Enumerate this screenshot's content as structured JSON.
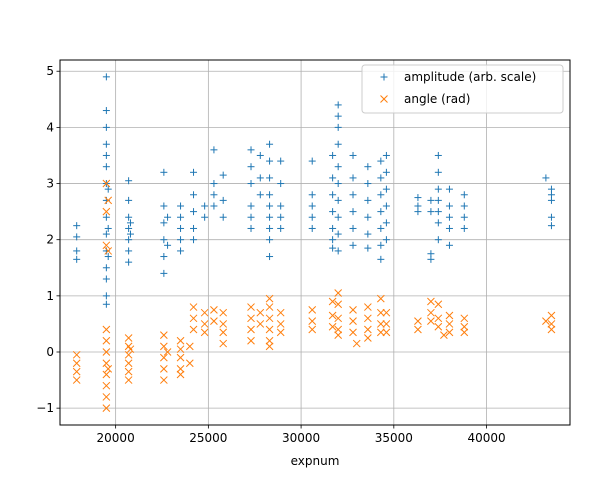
{
  "chart_data": {
    "type": "scatter",
    "title": "",
    "xlabel": "expnum",
    "ylabel": "",
    "xlim": [
      17000,
      44500
    ],
    "ylim": [
      -1.3,
      5.2
    ],
    "xticks": [
      20000,
      25000,
      30000,
      35000,
      40000
    ],
    "yticks": [
      -1,
      0,
      1,
      2,
      3,
      4,
      5
    ],
    "grid": true,
    "legend_position": "top-right",
    "series": [
      {
        "name": "amplitude (arb. scale)",
        "marker": "+",
        "color": "#1f77b4",
        "points": [
          [
            17900,
            1.65
          ],
          [
            17900,
            1.8
          ],
          [
            17900,
            2.05
          ],
          [
            17900,
            2.25
          ],
          [
            19500,
            4.9
          ],
          [
            19500,
            4.3
          ],
          [
            19500,
            4.0
          ],
          [
            19500,
            3.7
          ],
          [
            19500,
            3.5
          ],
          [
            19500,
            3.3
          ],
          [
            19500,
            3.0
          ],
          [
            19500,
            2.7
          ],
          [
            19500,
            2.4
          ],
          [
            19500,
            2.1
          ],
          [
            19500,
            1.8
          ],
          [
            19500,
            1.5
          ],
          [
            19500,
            1.3
          ],
          [
            19500,
            1.0
          ],
          [
            19500,
            0.85
          ],
          [
            19600,
            2.9
          ],
          [
            19600,
            2.2
          ],
          [
            19600,
            1.7
          ],
          [
            20700,
            3.05
          ],
          [
            20700,
            2.7
          ],
          [
            20700,
            2.4
          ],
          [
            20700,
            2.2
          ],
          [
            20700,
            2.0
          ],
          [
            20700,
            1.8
          ],
          [
            20700,
            1.6
          ],
          [
            20800,
            2.3
          ],
          [
            20800,
            2.1
          ],
          [
            22600,
            3.2
          ],
          [
            22600,
            2.6
          ],
          [
            22600,
            2.3
          ],
          [
            22600,
            2.0
          ],
          [
            22600,
            1.7
          ],
          [
            22600,
            1.4
          ],
          [
            22800,
            2.4
          ],
          [
            22800,
            1.9
          ],
          [
            23500,
            2.6
          ],
          [
            23500,
            2.4
          ],
          [
            23500,
            2.2
          ],
          [
            23500,
            2.0
          ],
          [
            23500,
            1.8
          ],
          [
            24200,
            3.2
          ],
          [
            24200,
            2.8
          ],
          [
            24200,
            2.5
          ],
          [
            24200,
            2.2
          ],
          [
            24200,
            2.0
          ],
          [
            24800,
            2.6
          ],
          [
            24800,
            2.4
          ],
          [
            25300,
            3.6
          ],
          [
            25300,
            3.0
          ],
          [
            25300,
            2.8
          ],
          [
            25300,
            2.6
          ],
          [
            25800,
            3.15
          ],
          [
            25800,
            2.7
          ],
          [
            25800,
            2.4
          ],
          [
            27300,
            3.6
          ],
          [
            27300,
            3.3
          ],
          [
            27300,
            3.0
          ],
          [
            27300,
            2.6
          ],
          [
            27300,
            2.4
          ],
          [
            27300,
            2.2
          ],
          [
            27800,
            3.5
          ],
          [
            27800,
            3.1
          ],
          [
            27800,
            2.8
          ],
          [
            28300,
            3.7
          ],
          [
            28300,
            3.4
          ],
          [
            28300,
            3.1
          ],
          [
            28300,
            2.8
          ],
          [
            28300,
            2.6
          ],
          [
            28300,
            2.4
          ],
          [
            28300,
            2.2
          ],
          [
            28300,
            2.0
          ],
          [
            28300,
            1.7
          ],
          [
            28900,
            3.4
          ],
          [
            28900,
            3.0
          ],
          [
            28900,
            2.6
          ],
          [
            28900,
            2.4
          ],
          [
            28900,
            2.2
          ],
          [
            30600,
            3.4
          ],
          [
            30600,
            2.8
          ],
          [
            30600,
            2.6
          ],
          [
            30600,
            2.4
          ],
          [
            30600,
            2.2
          ],
          [
            31700,
            3.5
          ],
          [
            31700,
            3.1
          ],
          [
            31700,
            2.8
          ],
          [
            31700,
            2.5
          ],
          [
            31700,
            2.2
          ],
          [
            31700,
            2.0
          ],
          [
            31700,
            1.85
          ],
          [
            32000,
            4.4
          ],
          [
            32000,
            4.2
          ],
          [
            32000,
            4.0
          ],
          [
            32000,
            3.7
          ],
          [
            32000,
            3.3
          ],
          [
            32000,
            3.0
          ],
          [
            32000,
            2.7
          ],
          [
            32000,
            2.4
          ],
          [
            32000,
            2.1
          ],
          [
            32000,
            1.8
          ],
          [
            32800,
            3.5
          ],
          [
            32800,
            3.1
          ],
          [
            32800,
            2.8
          ],
          [
            32800,
            2.5
          ],
          [
            32800,
            2.2
          ],
          [
            32800,
            1.9
          ],
          [
            33600,
            3.3
          ],
          [
            33600,
            3.0
          ],
          [
            33600,
            2.7
          ],
          [
            33600,
            2.4
          ],
          [
            33600,
            2.1
          ],
          [
            33600,
            1.85
          ],
          [
            34300,
            3.4
          ],
          [
            34300,
            3.1
          ],
          [
            34300,
            2.8
          ],
          [
            34300,
            2.5
          ],
          [
            34300,
            2.2
          ],
          [
            34300,
            1.9
          ],
          [
            34300,
            1.65
          ],
          [
            34600,
            3.5
          ],
          [
            34600,
            3.2
          ],
          [
            34600,
            2.9
          ],
          [
            34600,
            2.6
          ],
          [
            34600,
            2.3
          ],
          [
            34600,
            2.0
          ],
          [
            36300,
            2.75
          ],
          [
            36300,
            2.6
          ],
          [
            36300,
            2.5
          ],
          [
            37000,
            2.7
          ],
          [
            37000,
            2.5
          ],
          [
            37000,
            1.75
          ],
          [
            37000,
            1.65
          ],
          [
            37400,
            3.5
          ],
          [
            37400,
            3.2
          ],
          [
            37400,
            2.9
          ],
          [
            37400,
            2.7
          ],
          [
            37400,
            2.5
          ],
          [
            37400,
            2.3
          ],
          [
            37400,
            2.0
          ],
          [
            38000,
            2.9
          ],
          [
            38000,
            2.6
          ],
          [
            38000,
            2.4
          ],
          [
            38000,
            2.2
          ],
          [
            38000,
            1.9
          ],
          [
            38800,
            2.8
          ],
          [
            38800,
            2.6
          ],
          [
            38800,
            2.4
          ],
          [
            38800,
            2.2
          ],
          [
            43200,
            3.1
          ],
          [
            43500,
            2.9
          ],
          [
            43500,
            2.8
          ],
          [
            43500,
            2.7
          ],
          [
            43500,
            2.4
          ],
          [
            43500,
            2.25
          ]
        ]
      },
      {
        "name": "angle (rad)",
        "marker": "x",
        "color": "#ff7f0e",
        "points": [
          [
            17900,
            -0.05
          ],
          [
            17900,
            -0.2
          ],
          [
            17900,
            -0.35
          ],
          [
            17900,
            -0.5
          ],
          [
            19500,
            3.0
          ],
          [
            19500,
            2.5
          ],
          [
            19500,
            1.9
          ],
          [
            19500,
            0.4
          ],
          [
            19500,
            0.2
          ],
          [
            19500,
            0.0
          ],
          [
            19500,
            -0.2
          ],
          [
            19500,
            -0.4
          ],
          [
            19500,
            -0.6
          ],
          [
            19500,
            -0.8
          ],
          [
            19500,
            -1.0
          ],
          [
            19600,
            2.7
          ],
          [
            19600,
            1.8
          ],
          [
            19600,
            -0.3
          ],
          [
            20700,
            0.25
          ],
          [
            20700,
            0.1
          ],
          [
            20700,
            -0.05
          ],
          [
            20700,
            -0.2
          ],
          [
            20700,
            -0.35
          ],
          [
            20700,
            -0.5
          ],
          [
            20800,
            0.05
          ],
          [
            22600,
            0.3
          ],
          [
            22600,
            0.1
          ],
          [
            22600,
            -0.1
          ],
          [
            22600,
            -0.3
          ],
          [
            22600,
            -0.5
          ],
          [
            22800,
            0.0
          ],
          [
            23500,
            0.2
          ],
          [
            23500,
            0.05
          ],
          [
            23500,
            -0.1
          ],
          [
            23500,
            -0.3
          ],
          [
            23500,
            -0.4
          ],
          [
            24000,
            0.1
          ],
          [
            24000,
            -0.2
          ],
          [
            24200,
            0.8
          ],
          [
            24200,
            0.6
          ],
          [
            24200,
            0.4
          ],
          [
            24800,
            0.7
          ],
          [
            24800,
            0.5
          ],
          [
            24800,
            0.35
          ],
          [
            25300,
            0.75
          ],
          [
            25300,
            0.55
          ],
          [
            25800,
            0.7
          ],
          [
            25800,
            0.5
          ],
          [
            25800,
            0.35
          ],
          [
            25800,
            0.15
          ],
          [
            27300,
            0.8
          ],
          [
            27300,
            0.6
          ],
          [
            27300,
            0.4
          ],
          [
            27300,
            0.2
          ],
          [
            27800,
            0.7
          ],
          [
            27800,
            0.5
          ],
          [
            28300,
            0.95
          ],
          [
            28300,
            0.8
          ],
          [
            28300,
            0.6
          ],
          [
            28300,
            0.4
          ],
          [
            28300,
            0.2
          ],
          [
            28300,
            0.1
          ],
          [
            28900,
            0.7
          ],
          [
            28900,
            0.5
          ],
          [
            28900,
            0.35
          ],
          [
            30600,
            0.75
          ],
          [
            30600,
            0.55
          ],
          [
            30600,
            0.4
          ],
          [
            31700,
            0.9
          ],
          [
            31700,
            0.65
          ],
          [
            31700,
            0.45
          ],
          [
            32000,
            1.05
          ],
          [
            32000,
            0.85
          ],
          [
            32000,
            0.6
          ],
          [
            32000,
            0.4
          ],
          [
            32000,
            0.3
          ],
          [
            32800,
            0.75
          ],
          [
            32800,
            0.55
          ],
          [
            32800,
            0.35
          ],
          [
            33000,
            0.15
          ],
          [
            33600,
            0.8
          ],
          [
            33600,
            0.6
          ],
          [
            33600,
            0.4
          ],
          [
            33600,
            0.25
          ],
          [
            34300,
            0.95
          ],
          [
            34300,
            0.7
          ],
          [
            34300,
            0.5
          ],
          [
            34300,
            0.35
          ],
          [
            34600,
            0.7
          ],
          [
            34600,
            0.5
          ],
          [
            34600,
            0.35
          ],
          [
            36300,
            0.55
          ],
          [
            36300,
            0.4
          ],
          [
            37000,
            0.9
          ],
          [
            37000,
            0.7
          ],
          [
            37000,
            0.55
          ],
          [
            37400,
            0.85
          ],
          [
            37400,
            0.6
          ],
          [
            37400,
            0.45
          ],
          [
            37700,
            0.3
          ],
          [
            38000,
            0.65
          ],
          [
            38000,
            0.5
          ],
          [
            38000,
            0.35
          ],
          [
            38800,
            0.6
          ],
          [
            38800,
            0.45
          ],
          [
            38800,
            0.35
          ],
          [
            43200,
            0.55
          ],
          [
            43500,
            0.65
          ],
          [
            43500,
            0.5
          ],
          [
            43500,
            0.4
          ]
        ]
      }
    ]
  }
}
